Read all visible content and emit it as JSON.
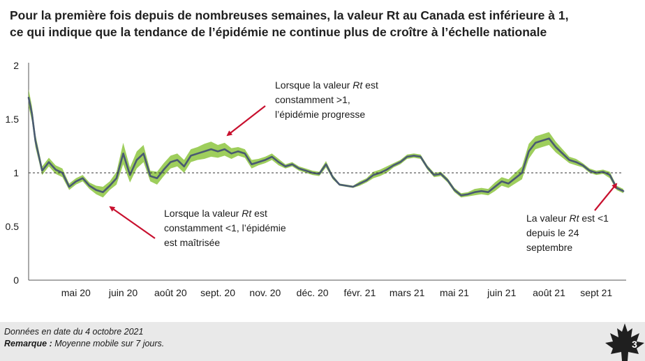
{
  "slide": {
    "title_line1": "Pour la première fois depuis de nombreuses semaines, la valeur Rt au Canada est inférieure à 1,",
    "title_line2": "ce qui indique que la tendance de l’épidémie ne continue plus de croître à l’échelle nationale",
    "footer_date": "Données en date du 4 octobre 2021",
    "footer_remark_label": "Remarque :",
    "footer_remark_text": " Moyenne mobile sur 7 jours.",
    "page_number": "3"
  },
  "colors": {
    "line": "#4a5a72",
    "band": "#8dc63f",
    "arrow": "#c8102e",
    "reference": "#333333"
  },
  "annotations": {
    "upper_top": {
      "l1_pre": "Lorsque la valeur ",
      "l1_em": "Rt",
      "l1_post": " est",
      "l2": "constamment >1,",
      "l3": "l’épidémie progresse"
    },
    "lower_left": {
      "l1_pre": "Lorsque la valeur ",
      "l1_em": "Rt",
      "l1_post": " est",
      "l2": "constamment <1, l’épidémie",
      "l3": "est maîtrisée"
    },
    "right": {
      "l1_pre": "La valeur ",
      "l1_em": "Rt",
      "l1_post": " est <1",
      "l2": "depuis le 24",
      "l3": "septembre"
    }
  },
  "chart_data": {
    "type": "line",
    "title": "",
    "xlabel": "",
    "ylabel": "",
    "ylim": [
      0,
      2
    ],
    "yticks": [
      "0",
      "0.5",
      "1",
      "1.5",
      "2"
    ],
    "ytick_values": [
      0,
      0.5,
      1,
      1.5,
      2
    ],
    "reference_line": 1,
    "xlim": [
      0,
      88
    ],
    "xtick_labels": [
      "mai 20",
      "juin 20",
      "août 20",
      "sept. 20",
      "nov. 20",
      "déc. 20",
      "févr. 21",
      "mars 21",
      "mai 21",
      "juin 21",
      "août 21",
      "sept 21"
    ],
    "xtick_positions": [
      7,
      14,
      21,
      28,
      35,
      42,
      49,
      56,
      63,
      70,
      77,
      84
    ],
    "series": [
      {
        "x": [
          0,
          0.5,
          1,
          2,
          3,
          4,
          5,
          6,
          7,
          8,
          9,
          10,
          11,
          12,
          13,
          14,
          15,
          16,
          17,
          18,
          19,
          20,
          21,
          22,
          23,
          24,
          25,
          26,
          27,
          28,
          29,
          30,
          31,
          32,
          33,
          34,
          35,
          36,
          37,
          38,
          39,
          40,
          41,
          42,
          43,
          44,
          45,
          46,
          47,
          48,
          49,
          50,
          51,
          52,
          53,
          54,
          55,
          56,
          57,
          58,
          59,
          60,
          61,
          62,
          63,
          64,
          65,
          66,
          67,
          68,
          69,
          70,
          71,
          72,
          73,
          74,
          75,
          76,
          77,
          78,
          79,
          80,
          81,
          82,
          83,
          84,
          85,
          86,
          87,
          88
        ],
        "values": [
          1.7,
          1.55,
          1.3,
          1.02,
          1.1,
          1.03,
          1.0,
          0.87,
          0.92,
          0.95,
          0.88,
          0.84,
          0.82,
          0.88,
          0.95,
          1.18,
          0.98,
          1.12,
          1.18,
          0.97,
          0.95,
          1.03,
          1.1,
          1.12,
          1.06,
          1.16,
          1.18,
          1.2,
          1.22,
          1.2,
          1.22,
          1.18,
          1.2,
          1.18,
          1.08,
          1.1,
          1.12,
          1.15,
          1.1,
          1.06,
          1.08,
          1.04,
          1.02,
          1.0,
          0.99,
          1.08,
          0.96,
          0.89,
          0.88,
          0.87,
          0.9,
          0.93,
          0.98,
          1.0,
          1.03,
          1.07,
          1.1,
          1.15,
          1.16,
          1.15,
          1.05,
          0.98,
          0.99,
          0.93,
          0.84,
          0.79,
          0.8,
          0.82,
          0.83,
          0.82,
          0.87,
          0.92,
          0.9,
          0.95,
          1.0,
          1.2,
          1.28,
          1.3,
          1.32,
          1.24,
          1.18,
          1.12,
          1.1,
          1.07,
          1.02,
          1.0,
          1.01,
          0.98,
          0.86,
          0.83
        ],
        "lower": [
          1.62,
          1.48,
          1.24,
          0.98,
          1.06,
          0.99,
          0.96,
          0.84,
          0.89,
          0.92,
          0.85,
          0.8,
          0.77,
          0.84,
          0.89,
          1.08,
          0.91,
          1.04,
          1.1,
          0.92,
          0.89,
          0.97,
          1.04,
          1.06,
          1.0,
          1.1,
          1.12,
          1.13,
          1.15,
          1.14,
          1.16,
          1.13,
          1.16,
          1.14,
          1.04,
          1.07,
          1.09,
          1.12,
          1.07,
          1.04,
          1.06,
          1.02,
          1.0,
          0.98,
          0.97,
          1.05,
          0.94,
          0.88,
          0.87,
          0.86,
          0.88,
          0.91,
          0.95,
          0.97,
          1.0,
          1.05,
          1.08,
          1.13,
          1.14,
          1.13,
          1.03,
          0.96,
          0.97,
          0.91,
          0.82,
          0.77,
          0.78,
          0.79,
          0.8,
          0.79,
          0.83,
          0.88,
          0.86,
          0.9,
          0.94,
          1.13,
          1.22,
          1.24,
          1.26,
          1.19,
          1.14,
          1.09,
          1.07,
          1.05,
          1.0,
          0.98,
          0.99,
          0.95,
          0.84,
          0.81
        ],
        "upper": [
          1.78,
          1.62,
          1.36,
          1.06,
          1.14,
          1.07,
          1.04,
          0.9,
          0.95,
          0.98,
          0.91,
          0.88,
          0.87,
          0.92,
          1.01,
          1.28,
          1.05,
          1.2,
          1.26,
          1.02,
          1.01,
          1.09,
          1.16,
          1.18,
          1.12,
          1.22,
          1.24,
          1.27,
          1.29,
          1.26,
          1.28,
          1.23,
          1.24,
          1.22,
          1.12,
          1.13,
          1.15,
          1.18,
          1.13,
          1.08,
          1.1,
          1.06,
          1.04,
          1.02,
          1.01,
          1.11,
          0.98,
          0.9,
          0.89,
          0.88,
          0.92,
          0.95,
          1.01,
          1.03,
          1.06,
          1.09,
          1.12,
          1.17,
          1.18,
          1.17,
          1.07,
          1.0,
          1.01,
          0.95,
          0.86,
          0.81,
          0.82,
          0.85,
          0.86,
          0.85,
          0.91,
          0.96,
          0.94,
          1.0,
          1.06,
          1.27,
          1.34,
          1.36,
          1.38,
          1.29,
          1.22,
          1.15,
          1.13,
          1.09,
          1.04,
          1.02,
          1.03,
          1.01,
          0.88,
          0.85
        ]
      }
    ]
  }
}
